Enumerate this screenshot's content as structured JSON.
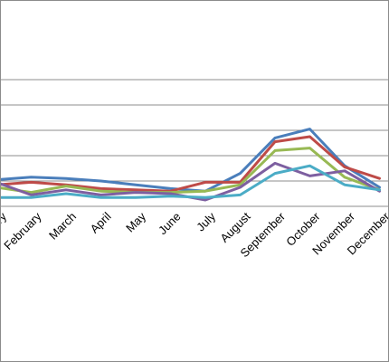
{
  "chart_data": {
    "type": "line",
    "title": "",
    "xlabel": "",
    "ylabel": "",
    "ylim": [
      0,
      5
    ],
    "grid": true,
    "legend": "none",
    "categories": [
      "January",
      "February",
      "March",
      "April",
      "May",
      "June",
      "July",
      "August",
      "September",
      "October",
      "November",
      "December"
    ],
    "series": [
      {
        "color": "#4a7ebb",
        "values": [
          1.05,
          1.15,
          1.1,
          1.0,
          0.85,
          0.7,
          0.6,
          1.3,
          2.7,
          3.05,
          1.6,
          0.75
        ]
      },
      {
        "color": "#be4b48",
        "values": [
          0.85,
          0.95,
          0.85,
          0.7,
          0.65,
          0.6,
          0.95,
          0.95,
          2.55,
          2.75,
          1.55,
          1.1
        ]
      },
      {
        "color": "#98b954",
        "values": [
          0.75,
          0.55,
          0.8,
          0.6,
          0.55,
          0.55,
          0.6,
          0.85,
          2.2,
          2.3,
          1.15,
          0.65
        ]
      },
      {
        "color": "#7d5fa0",
        "values": [
          0.95,
          0.45,
          0.65,
          0.45,
          0.55,
          0.5,
          0.25,
          0.75,
          1.7,
          1.2,
          1.4,
          0.6
        ]
      },
      {
        "color": "#4bacc6",
        "values": [
          0.35,
          0.35,
          0.5,
          0.35,
          0.35,
          0.4,
          0.35,
          0.45,
          1.3,
          1.6,
          0.85,
          0.65
        ]
      }
    ]
  }
}
